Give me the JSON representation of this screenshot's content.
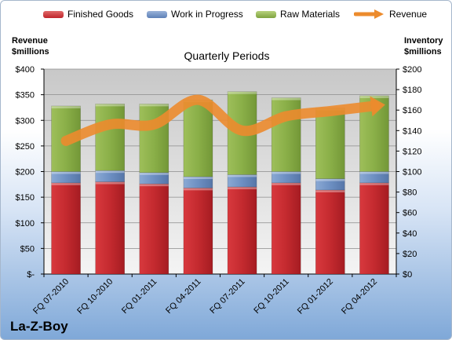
{
  "chart_data": {
    "type": "bar",
    "subtitle": "Quarterly Periods",
    "company": "La-Z-Boy",
    "ylabel_left": [
      "Revenue",
      "$millions"
    ],
    "ylabel_right": [
      "Inventory",
      "$millions"
    ],
    "categories": [
      "FQ 07-2010",
      "FQ 10-2010",
      "FQ 01-2011",
      "FQ 04-2011",
      "FQ 07-2011",
      "FQ 10-2011",
      "FQ 01-2012",
      "FQ 04-2012"
    ],
    "left_axis": {
      "min": 0,
      "max": 400,
      "step": 50,
      "ticks": [
        "$-",
        "$50",
        "$100",
        "$150",
        "$200",
        "$250",
        "$300",
        "$350",
        "$400"
      ]
    },
    "right_axis": {
      "min": 0,
      "max": 200,
      "step": 20,
      "ticks": [
        "$0",
        "$20",
        "$40",
        "$60",
        "$80",
        "$100",
        "$120",
        "$140",
        "$160",
        "$180",
        "$200"
      ]
    },
    "stacked_axis": "right",
    "series": [
      {
        "name": "Finished Goods",
        "color": "#c0242a",
        "values": [
          89,
          90,
          88,
          84,
          85,
          89,
          82,
          89
        ]
      },
      {
        "name": "Work in Progress",
        "color": "#6a8ec2",
        "values": [
          11,
          11,
          11,
          11,
          12,
          11,
          11,
          11
        ]
      },
      {
        "name": "Raw Materials",
        "color": "#8cb04a",
        "values": [
          64,
          65,
          67,
          75,
          81,
          72,
          69,
          74
        ]
      },
      {
        "name": "Revenue",
        "type": "line",
        "axis": "right",
        "color": "#ec8b2d",
        "values": [
          130,
          146,
          146,
          170,
          140,
          154,
          159,
          164
        ]
      }
    ],
    "grid": true,
    "legend_position": "top"
  }
}
